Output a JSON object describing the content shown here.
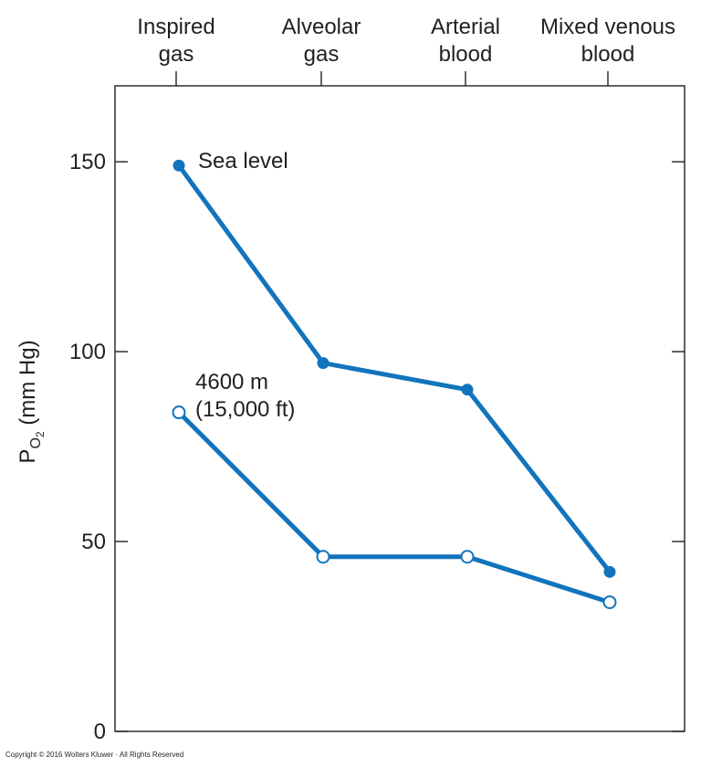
{
  "chart_data": {
    "type": "line",
    "categories": [
      [
        "Inspired",
        "gas"
      ],
      [
        "Alveolar",
        "gas"
      ],
      [
        "Arterial",
        "blood"
      ],
      [
        "Mixed venous",
        "blood"
      ]
    ],
    "ylabel": {
      "main": "P",
      "subscript": "O",
      "subsubscript": "2",
      "unit": " (mm Hg)"
    },
    "ylim": [
      0,
      170
    ],
    "yticks": [
      0,
      50,
      100,
      150
    ],
    "grid": false,
    "series": [
      {
        "name": "Sea level",
        "label_lines": [
          "Sea level"
        ],
        "values": [
          149,
          97,
          90,
          42
        ],
        "marker": "filled",
        "color": "#1274bd"
      },
      {
        "name": "4600 m (15,000 ft)",
        "label_lines": [
          "4600 m",
          "(15,000 ft)"
        ],
        "values": [
          84,
          46,
          46,
          34
        ],
        "marker": "open",
        "color": "#1274bd"
      }
    ],
    "axis_color": "#231f20"
  },
  "copyright": "Copyright © 2016 Wolters Kluwer · All Rights Reserved"
}
